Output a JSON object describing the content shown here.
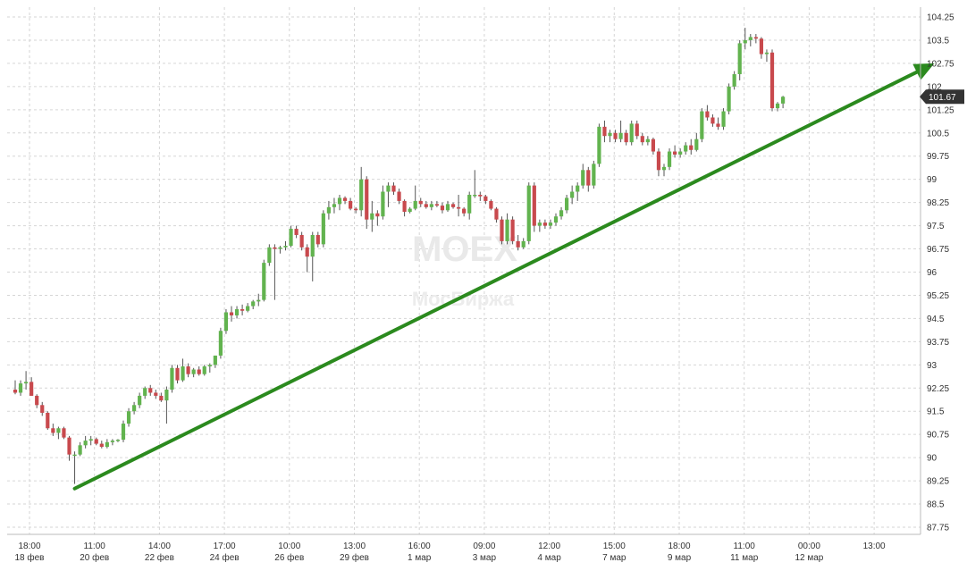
{
  "chart_data": {
    "type": "candlestick",
    "title": "",
    "xlabel": "",
    "ylabel": "",
    "ylim": [
      87.5,
      104.25
    ],
    "grid": true,
    "yticks": [
      104.25,
      103.5,
      102.75,
      102,
      101.25,
      100.5,
      99.75,
      99,
      98.25,
      97.5,
      96.75,
      96,
      95.25,
      94.5,
      93.75,
      93,
      92.25,
      91.5,
      90.75,
      90,
      89.25,
      88.5,
      87.75
    ],
    "ytick_labels": [
      "104.25",
      "103.5",
      "102.75",
      "102",
      "101.25",
      "100.5",
      "99.75",
      "99",
      "98.25",
      "97.5",
      "96.75",
      "96",
      "95.25",
      "94.5",
      "93.75",
      "93",
      "92.25",
      "91.5",
      "90.75",
      "90",
      "89.25",
      "88.5",
      "87.75"
    ],
    "xticks": [
      {
        "time": "18:00",
        "date": "18 фев"
      },
      {
        "time": "11:00",
        "date": "20 фев"
      },
      {
        "time": "14:00",
        "date": "22 фев"
      },
      {
        "time": "17:00",
        "date": "24 фев"
      },
      {
        "time": "10:00",
        "date": "26 фев"
      },
      {
        "time": "13:00",
        "date": "29 фев"
      },
      {
        "time": "16:00",
        "date": "1 мар"
      },
      {
        "time": "09:00",
        "date": "3 мар"
      },
      {
        "time": "12:00",
        "date": "4 мар"
      },
      {
        "time": "15:00",
        "date": "7 мар"
      },
      {
        "time": "18:00",
        "date": "9 мар"
      },
      {
        "time": "11:00",
        "date": "11 мар"
      },
      {
        "time": "00:00",
        "date": "12 мар"
      },
      {
        "time": "13:00",
        "date": ""
      }
    ],
    "last_price": "101.67",
    "watermark": {
      "main": "MOEX",
      "sub": "МосБиржа"
    },
    "candles": [
      [
        92.2,
        92.5,
        92.05,
        92.1
      ],
      [
        92.1,
        92.5,
        92.0,
        92.4
      ],
      [
        92.4,
        92.8,
        92.2,
        92.45
      ],
      [
        92.45,
        92.6,
        92.0,
        92.0
      ],
      [
        92.0,
        92.05,
        91.6,
        91.7
      ],
      [
        91.7,
        91.8,
        91.35,
        91.45
      ],
      [
        91.45,
        91.5,
        90.9,
        90.95
      ],
      [
        90.95,
        91.1,
        90.7,
        90.8
      ],
      [
        90.8,
        91.0,
        90.6,
        90.95
      ],
      [
        90.95,
        91.0,
        90.6,
        90.65
      ],
      [
        90.65,
        90.7,
        89.9,
        90.1
      ],
      [
        90.1,
        90.2,
        89.15,
        90.1
      ],
      [
        90.1,
        90.5,
        90.05,
        90.4
      ],
      [
        90.4,
        90.7,
        90.3,
        90.55
      ],
      [
        90.55,
        90.7,
        90.4,
        90.6
      ],
      [
        90.6,
        90.65,
        90.4,
        90.45
      ],
      [
        90.45,
        90.55,
        90.3,
        90.35
      ],
      [
        90.35,
        90.6,
        90.3,
        90.5
      ],
      [
        90.5,
        90.6,
        90.4,
        90.55
      ],
      [
        90.55,
        90.6,
        90.5,
        90.58
      ],
      [
        90.58,
        91.2,
        90.5,
        91.1
      ],
      [
        91.1,
        91.6,
        91.0,
        91.5
      ],
      [
        91.5,
        91.8,
        91.4,
        91.7
      ],
      [
        91.7,
        92.1,
        91.6,
        92.0
      ],
      [
        92.0,
        92.3,
        91.9,
        92.25
      ],
      [
        92.25,
        92.35,
        92.0,
        92.1
      ],
      [
        92.1,
        92.2,
        91.9,
        92.0
      ],
      [
        92.0,
        92.1,
        91.8,
        91.85
      ],
      [
        91.85,
        92.3,
        91.1,
        92.2
      ],
      [
        92.2,
        93.0,
        92.1,
        92.9
      ],
      [
        92.9,
        93.0,
        92.4,
        92.5
      ],
      [
        92.5,
        93.2,
        92.45,
        92.95
      ],
      [
        92.95,
        93.05,
        92.6,
        92.7
      ],
      [
        92.7,
        92.9,
        92.6,
        92.85
      ],
      [
        92.85,
        92.95,
        92.65,
        92.7
      ],
      [
        92.7,
        93.0,
        92.65,
        92.95
      ],
      [
        92.95,
        93.05,
        92.75,
        93.0
      ],
      [
        93.0,
        93.3,
        92.9,
        93.3
      ],
      [
        93.3,
        94.2,
        93.2,
        94.1
      ],
      [
        94.1,
        94.8,
        94.0,
        94.7
      ],
      [
        94.7,
        94.9,
        94.4,
        94.6
      ],
      [
        94.6,
        94.9,
        94.5,
        94.8
      ],
      [
        94.8,
        94.95,
        94.6,
        94.75
      ],
      [
        94.75,
        95.0,
        94.7,
        94.9
      ],
      [
        94.9,
        95.1,
        94.8,
        95.05
      ],
      [
        95.05,
        95.3,
        94.9,
        95.1
      ],
      [
        95.1,
        96.4,
        95.05,
        96.3
      ],
      [
        96.3,
        96.9,
        96.2,
        96.8
      ],
      [
        96.8,
        96.9,
        95.1,
        96.75
      ],
      [
        96.75,
        96.85,
        96.6,
        96.8
      ],
      [
        96.8,
        97.0,
        96.7,
        96.85
      ],
      [
        96.85,
        97.5,
        96.8,
        97.4
      ],
      [
        97.4,
        97.5,
        97.1,
        97.2
      ],
      [
        97.2,
        97.3,
        96.7,
        96.8
      ],
      [
        96.8,
        96.9,
        96.0,
        96.5
      ],
      [
        96.5,
        97.3,
        95.7,
        97.2
      ],
      [
        97.2,
        97.3,
        96.8,
        96.9
      ],
      [
        96.9,
        98.0,
        96.8,
        97.9
      ],
      [
        97.9,
        98.3,
        97.7,
        98.1
      ],
      [
        98.1,
        98.4,
        97.9,
        98.2
      ],
      [
        98.2,
        98.5,
        98.0,
        98.4
      ],
      [
        98.4,
        98.45,
        98.2,
        98.3
      ],
      [
        98.3,
        98.4,
        98.0,
        98.05
      ],
      [
        98.05,
        98.1,
        97.9,
        98.0
      ],
      [
        98.0,
        99.4,
        97.8,
        99.0
      ],
      [
        99.0,
        99.1,
        97.4,
        97.7
      ],
      [
        97.7,
        98.3,
        97.3,
        97.9
      ],
      [
        97.9,
        98.0,
        97.5,
        97.8
      ],
      [
        97.8,
        98.8,
        97.7,
        98.6
      ],
      [
        98.6,
        98.9,
        98.1,
        98.8
      ],
      [
        98.8,
        98.9,
        98.5,
        98.6
      ],
      [
        98.6,
        98.7,
        98.2,
        98.3
      ],
      [
        98.3,
        98.35,
        97.8,
        97.95
      ],
      [
        97.95,
        98.1,
        97.9,
        98.05
      ],
      [
        98.05,
        98.8,
        98.0,
        98.3
      ],
      [
        98.3,
        98.4,
        98.1,
        98.2
      ],
      [
        98.2,
        98.3,
        98.05,
        98.1
      ],
      [
        98.1,
        98.3,
        98.0,
        98.2
      ],
      [
        98.2,
        98.3,
        98.1,
        98.15
      ],
      [
        98.15,
        98.25,
        97.9,
        98.0
      ],
      [
        98.0,
        98.3,
        97.95,
        98.2
      ],
      [
        98.2,
        98.25,
        98.05,
        98.1
      ],
      [
        98.1,
        98.5,
        97.8,
        98.05
      ],
      [
        98.05,
        98.1,
        97.8,
        97.9
      ],
      [
        97.9,
        98.6,
        97.7,
        98.5
      ],
      [
        98.5,
        99.3,
        98.4,
        98.5
      ],
      [
        98.5,
        98.6,
        98.3,
        98.45
      ],
      [
        98.45,
        98.5,
        98.2,
        98.3
      ],
      [
        98.3,
        98.35,
        98.0,
        98.05
      ],
      [
        98.05,
        98.1,
        97.6,
        97.7
      ],
      [
        97.7,
        97.8,
        96.9,
        97.0
      ],
      [
        97.0,
        97.9,
        96.9,
        97.7
      ],
      [
        97.7,
        97.8,
        96.9,
        97.0
      ],
      [
        97.0,
        97.2,
        96.7,
        96.8
      ],
      [
        96.8,
        97.1,
        96.75,
        97.0
      ],
      [
        97.0,
        98.9,
        96.9,
        98.8
      ],
      [
        98.8,
        98.9,
        97.3,
        97.5
      ],
      [
        97.5,
        97.7,
        97.3,
        97.6
      ],
      [
        97.6,
        97.7,
        97.4,
        97.5
      ],
      [
        97.5,
        97.7,
        97.4,
        97.6
      ],
      [
        97.6,
        97.9,
        97.5,
        97.8
      ],
      [
        97.8,
        98.1,
        97.7,
        98.0
      ],
      [
        98.0,
        98.5,
        97.9,
        98.4
      ],
      [
        98.4,
        98.8,
        98.2,
        98.6
      ],
      [
        98.6,
        98.9,
        98.3,
        98.8
      ],
      [
        98.8,
        99.5,
        98.7,
        99.3
      ],
      [
        99.3,
        99.4,
        98.6,
        98.8
      ],
      [
        98.8,
        99.6,
        98.7,
        99.5
      ],
      [
        99.5,
        100.8,
        99.4,
        100.7
      ],
      [
        100.7,
        100.9,
        100.2,
        100.4
      ],
      [
        100.4,
        100.6,
        100.2,
        100.5
      ],
      [
        100.5,
        100.6,
        100.2,
        100.3
      ],
      [
        100.3,
        100.9,
        100.2,
        100.5
      ],
      [
        100.5,
        100.6,
        100.1,
        100.2
      ],
      [
        100.2,
        100.9,
        100.1,
        100.8
      ],
      [
        100.8,
        100.9,
        100.3,
        100.4
      ],
      [
        100.4,
        100.5,
        100.1,
        100.2
      ],
      [
        100.2,
        100.4,
        100.1,
        100.3
      ],
      [
        100.3,
        100.35,
        99.8,
        99.9
      ],
      [
        99.9,
        100.0,
        99.1,
        99.3
      ],
      [
        99.3,
        99.5,
        99.1,
        99.4
      ],
      [
        99.4,
        100.0,
        99.3,
        99.9
      ],
      [
        99.9,
        100.1,
        99.7,
        99.8
      ],
      [
        99.8,
        100.0,
        99.7,
        99.9
      ],
      [
        99.9,
        100.2,
        99.8,
        100.1
      ],
      [
        100.1,
        100.3,
        99.8,
        99.95
      ],
      [
        99.95,
        100.5,
        99.9,
        100.3
      ],
      [
        100.3,
        101.3,
        100.2,
        101.2
      ],
      [
        101.2,
        101.4,
        100.9,
        101.0
      ],
      [
        101.0,
        101.1,
        100.7,
        100.8
      ],
      [
        100.8,
        101.0,
        100.6,
        100.7
      ],
      [
        100.7,
        101.3,
        100.6,
        101.2
      ],
      [
        101.2,
        102.1,
        101.1,
        102.0
      ],
      [
        102.0,
        102.5,
        101.9,
        102.4
      ],
      [
        102.4,
        103.5,
        102.2,
        103.4
      ],
      [
        103.4,
        103.9,
        103.2,
        103.5
      ],
      [
        103.5,
        103.7,
        103.3,
        103.6
      ],
      [
        103.6,
        103.7,
        103.4,
        103.55
      ],
      [
        103.55,
        103.6,
        102.9,
        103.05
      ],
      [
        103.05,
        103.2,
        102.8,
        103.1
      ],
      [
        103.1,
        103.2,
        101.2,
        101.3
      ],
      [
        101.3,
        101.5,
        101.2,
        101.45
      ],
      [
        101.45,
        101.7,
        101.3,
        101.67
      ]
    ],
    "trendline": {
      "from": {
        "x_index": 11,
        "y": 89.0
      },
      "to": {
        "x_index": 170,
        "y": 102.75
      }
    }
  }
}
